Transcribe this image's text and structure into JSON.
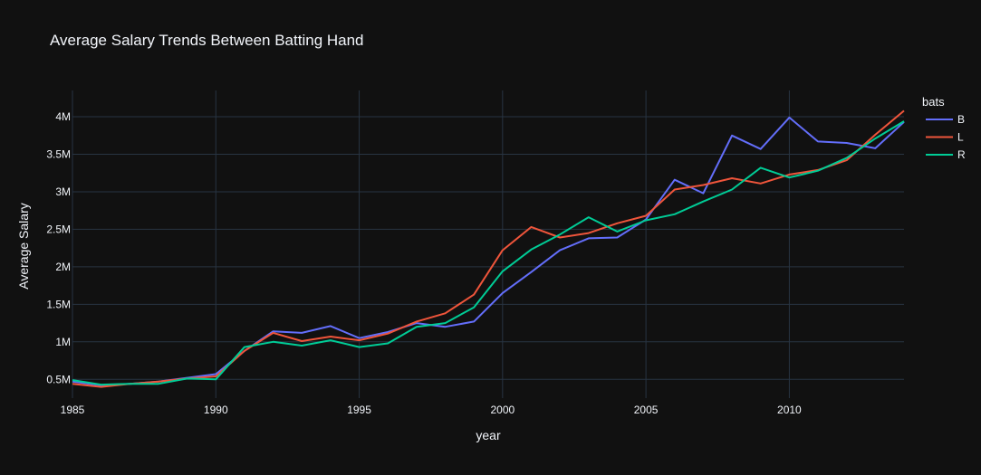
{
  "chart_data": {
    "type": "line",
    "title": "Average Salary Trends Between Batting Hand",
    "xlabel": "year",
    "ylabel": "Average Salary",
    "legend_title": "bats",
    "legend_position": "top-right",
    "xlim": [
      1985,
      2014
    ],
    "ylim": [
      250000,
      4350000
    ],
    "x_ticks": [
      1985,
      1990,
      1995,
      2000,
      2005,
      2010
    ],
    "x_tick_labels": [
      "1985",
      "1990",
      "1995",
      "2000",
      "2005",
      "2010"
    ],
    "y_ticks": [
      500000,
      1000000,
      1500000,
      2000000,
      2500000,
      3000000,
      3500000,
      4000000
    ],
    "y_tick_labels": [
      "0.5M",
      "1M",
      "1.5M",
      "2M",
      "2.5M",
      "3M",
      "3.5M",
      "4M"
    ],
    "grid": true,
    "x": [
      1985,
      1986,
      1987,
      1988,
      1989,
      1990,
      1991,
      1992,
      1993,
      1994,
      1995,
      1996,
      1997,
      1998,
      1999,
      2000,
      2001,
      2002,
      2003,
      2004,
      2005,
      2006,
      2007,
      2008,
      2009,
      2010,
      2011,
      2012,
      2013,
      2014
    ],
    "series": [
      {
        "name": "B",
        "color": "#636efa",
        "values": [
          470000,
          420000,
          440000,
          470000,
          520000,
          570000,
          880000,
          1140000,
          1120000,
          1210000,
          1050000,
          1130000,
          1250000,
          1200000,
          1270000,
          1650000,
          1930000,
          2220000,
          2380000,
          2390000,
          2630000,
          3160000,
          2980000,
          3750000,
          3570000,
          3990000,
          3670000,
          3650000,
          3580000,
          3930000
        ]
      },
      {
        "name": "L",
        "color": "#ef553b",
        "values": [
          440000,
          400000,
          440000,
          470000,
          510000,
          540000,
          880000,
          1120000,
          1010000,
          1070000,
          1020000,
          1110000,
          1270000,
          1380000,
          1630000,
          2220000,
          2530000,
          2390000,
          2450000,
          2580000,
          2680000,
          3030000,
          3090000,
          3180000,
          3110000,
          3230000,
          3290000,
          3420000,
          3760000,
          4080000
        ]
      },
      {
        "name": "R",
        "color": "#00cc96",
        "values": [
          490000,
          430000,
          440000,
          440000,
          510000,
          500000,
          930000,
          1000000,
          950000,
          1020000,
          930000,
          980000,
          1200000,
          1250000,
          1460000,
          1940000,
          2230000,
          2430000,
          2660000,
          2470000,
          2620000,
          2700000,
          2870000,
          3030000,
          3320000,
          3190000,
          3280000,
          3450000,
          3710000,
          3940000
        ]
      }
    ]
  }
}
